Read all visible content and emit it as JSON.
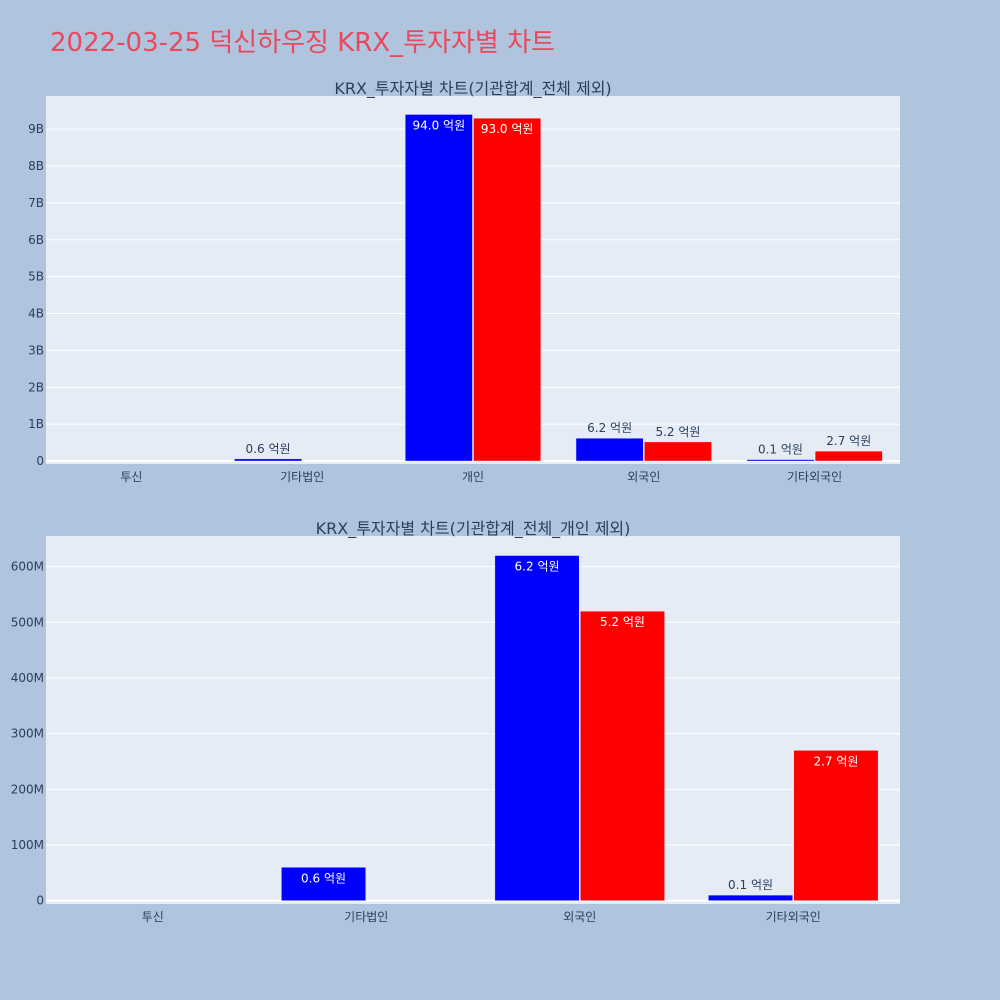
{
  "page": {
    "title": "2022-03-25 덕신하우징 KRX_투자자별 차트",
    "background": "#b0c4de",
    "title_color": "#e8495e"
  },
  "chart_data": [
    {
      "type": "bar",
      "title": "KRX_투자자별 차트(기관합계_전체 제외)",
      "categories": [
        "투신",
        "기타법인",
        "개인",
        "외국인",
        "기타외국인"
      ],
      "series": [
        {
          "color": "#0000ff",
          "values": [
            0,
            60000000,
            9400000000,
            620000000,
            10000000
          ],
          "labels": [
            "",
            "0.6 억원",
            "94.0 억원",
            "6.2 억원",
            "0.1 억원"
          ]
        },
        {
          "color": "#ff0000",
          "values": [
            0,
            0,
            9300000000,
            520000000,
            270000000
          ],
          "labels": [
            "",
            "",
            "93.0 억원",
            "5.2 억원",
            "2.7 억원"
          ]
        }
      ],
      "yticks": [
        "0",
        "1B",
        "2B",
        "3B",
        "4B",
        "5B",
        "6B",
        "7B",
        "8B",
        "9B"
      ],
      "ylim": [
        -80000000,
        9900000000
      ],
      "grid": true,
      "legend": "none"
    },
    {
      "type": "bar",
      "title": "KRX_투자자별 차트(기관합계_전체_개인 제외)",
      "categories": [
        "투신",
        "기타법인",
        "외국인",
        "기타외국인"
      ],
      "series": [
        {
          "color": "#0000ff",
          "values": [
            0,
            60000000,
            620000000,
            10000000
          ],
          "labels": [
            "",
            "0.6 억원",
            "6.2 억원",
            "0.1 억원"
          ]
        },
        {
          "color": "#ff0000",
          "values": [
            0,
            0,
            520000000,
            270000000
          ],
          "labels": [
            "",
            "",
            "5.2 억원",
            "2.7 억원"
          ]
        }
      ],
      "yticks": [
        "0",
        "100M",
        "200M",
        "300M",
        "400M",
        "500M",
        "600M"
      ],
      "ylim": [
        -6000000,
        655000000
      ],
      "grid": true,
      "legend": "none"
    }
  ]
}
